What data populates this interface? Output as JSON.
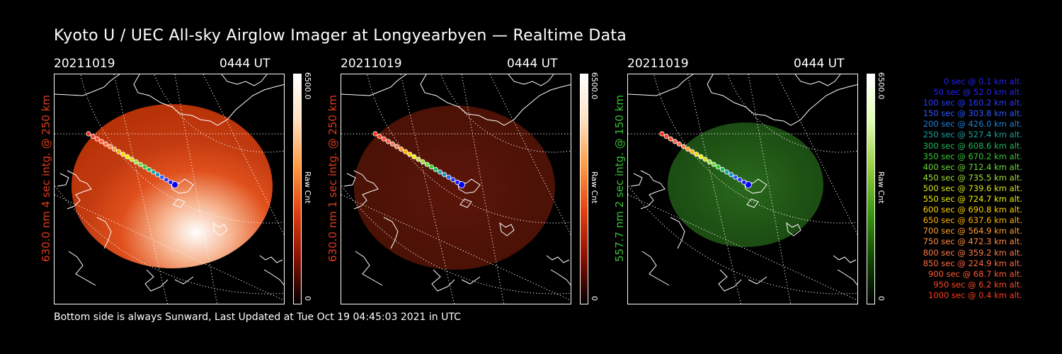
{
  "title": "Kyoto U / UEC All-sky Airglow Imager at Longyearbyen — Realtime Data",
  "footer": "Bottom side is always Sunward, Last Updated at Tue Oct 19 04:45:03 2021 in UTC",
  "panels": [
    {
      "date": "20211019",
      "time": "0444 UT",
      "label": "630.0 nm 4 sec intg. @ 250 km",
      "label_color": "#e03a1a",
      "colorbar_max": "6500.0",
      "colorbar_min": "0",
      "colorbar_unit": "Raw Cnt",
      "colorbar_gradient": [
        "#ffffff",
        "#ffe0c0",
        "#ff9a40",
        "#e04010",
        "#8a1000",
        "#000000"
      ],
      "glow_colors": [
        "#ffffff",
        "#f6b08a",
        "#e0501c",
        "#c23a10",
        "#b83208"
      ],
      "glow_opacity": 1.0
    },
    {
      "date": "20211019",
      "time": "0444 UT",
      "label": "630.0 nm 1 sec intg. @ 250 km",
      "label_color": "#e03a1a",
      "colorbar_max": "6500.0",
      "colorbar_min": "0",
      "colorbar_unit": "Raw Cnt",
      "colorbar_gradient": [
        "#ffffff",
        "#ffe0c0",
        "#ff9a40",
        "#e04010",
        "#8a1000",
        "#000000"
      ],
      "glow_colors": [
        "#5a1508",
        "#561408",
        "#4e1206",
        "#4a1106",
        "#461005"
      ],
      "glow_opacity": 1.0
    },
    {
      "date": "20211019",
      "time": "0444 UT",
      "label": "557.7 nm 2 sec intg. @ 150 km",
      "label_color": "#36c036",
      "colorbar_max": "6500.0",
      "colorbar_min": "0",
      "colorbar_unit": "Raw Cnt",
      "colorbar_gradient": [
        "#ffffff",
        "#e0ffb0",
        "#9ad040",
        "#3a9a10",
        "#124a00",
        "#000000"
      ],
      "glow_colors": [
        "#2a6a1c",
        "#245e18",
        "#1e5214",
        "#1a4a12",
        "#174310"
      ],
      "glow_opacity": 1.0
    }
  ],
  "trajectory_dot_colors": [
    "#0000ff",
    "#1a1aff",
    "#3030ff",
    "#2060ff",
    "#1e8fd0",
    "#1fa5a5",
    "#20c060",
    "#30d030",
    "#70e040",
    "#a0e040",
    "#d0e020",
    "#f0f000",
    "#ffd500",
    "#ffb000",
    "#ff9a30",
    "#ff8040",
    "#ff7050",
    "#ff6040",
    "#ff5030",
    "#ff4020",
    "#ff3010"
  ],
  "legend": [
    {
      "text": "0 sec @    0.1 km alt.",
      "color": "#2020ff"
    },
    {
      "text": "50 sec @   52.0 km alt.",
      "color": "#2222ff"
    },
    {
      "text": "100 sec @  160.2 km alt.",
      "color": "#2a3aff"
    },
    {
      "text": "150 sec @  303.8 km alt.",
      "color": "#2a56ff"
    },
    {
      "text": "200 sec @  426.0 km alt.",
      "color": "#1e80d8"
    },
    {
      "text": "250 sec @  527.4 km alt.",
      "color": "#1f9e9e"
    },
    {
      "text": "300 sec @  608.6 km alt.",
      "color": "#22b85a"
    },
    {
      "text": "350 sec @  670.2 km alt.",
      "color": "#36c836"
    },
    {
      "text": "400 sec @  712.4 km alt.",
      "color": "#6cd83a"
    },
    {
      "text": "450 sec @  735.5 km alt.",
      "color": "#a0e03a"
    },
    {
      "text": "500 sec @  739.6 km alt.",
      "color": "#d2e21e"
    },
    {
      "text": "550 sec @  724.7 km alt.",
      "color": "#f0ee00"
    },
    {
      "text": "600 sec @  690.8 km alt.",
      "color": "#ffd200"
    },
    {
      "text": "650 sec @  637.6 km alt.",
      "color": "#ffb400"
    },
    {
      "text": "700 sec @  564.9 km alt.",
      "color": "#ff9e2a"
    },
    {
      "text": "750 sec @  472.3 km alt.",
      "color": "#ff8a40"
    },
    {
      "text": "800 sec @  359.2 km alt.",
      "color": "#ff7a48"
    },
    {
      "text": "850 sec @  224.9 km alt.",
      "color": "#ff6a40"
    },
    {
      "text": "900 sec @   68.7 km alt.",
      "color": "#ff5a34"
    },
    {
      "text": "950 sec @    6.2 km alt.",
      "color": "#ff4a26"
    },
    {
      "text": "1000 sec @    0.4 km alt.",
      "color": "#ff3a18"
    }
  ]
}
